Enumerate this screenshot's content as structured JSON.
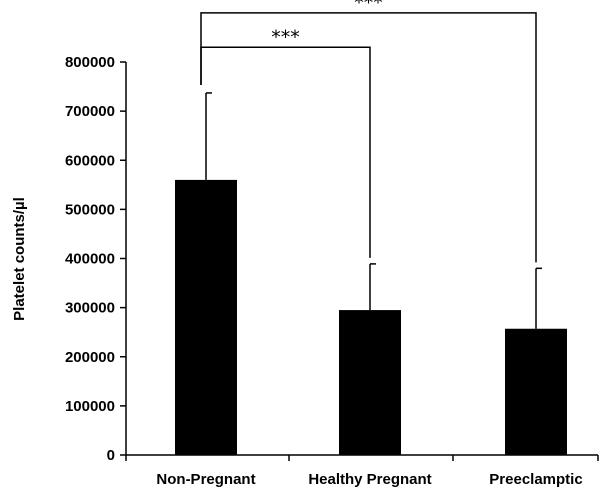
{
  "chart_data": {
    "type": "bar",
    "categories": [
      "Non-Pregnant",
      "Healthy Pregnant",
      "Preeclamptic"
    ],
    "values": [
      560000,
      295000,
      257000
    ],
    "error_upper": [
      737000,
      389000,
      380000
    ],
    "ylabel": "Platelet counts/µl",
    "xlabel": "",
    "ylim": [
      0,
      800000
    ],
    "yticks": [
      0,
      100000,
      200000,
      300000,
      400000,
      500000,
      600000,
      700000,
      800000
    ],
    "ytick_labels": [
      "0",
      "100000",
      "200000",
      "300000",
      "400000",
      "500000",
      "600000",
      "700000",
      "800000"
    ],
    "bar_color": "#000000",
    "grid": false,
    "significance": [
      {
        "from": "Non-Pregnant",
        "to": "Healthy Pregnant",
        "label": "***",
        "level": 830000
      },
      {
        "from": "Non-Pregnant",
        "to": "Preeclamptic",
        "label": "***",
        "level": 900000
      }
    ]
  }
}
